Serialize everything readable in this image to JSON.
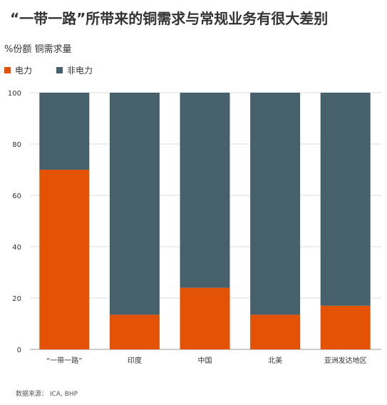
{
  "title": "“一带一路”所带来的铜需求与常规业务有很大差别",
  "source": "数据来源： ICA, BHP",
  "chart_data": {
    "type": "bar",
    "stacked": true,
    "ylabel": "%份额 铜需求量",
    "categories": [
      "“一带一路”",
      "印度",
      "中国",
      "北美",
      "亚洲发达地区"
    ],
    "series": [
      {
        "name": "电力",
        "color": "#e35205",
        "values": [
          70,
          13.5,
          24,
          13.5,
          17
        ]
      },
      {
        "name": "非电力",
        "color": "#46606c",
        "values": [
          30,
          86.5,
          76,
          86.5,
          83
        ]
      }
    ],
    "ylim": [
      0,
      100
    ],
    "yticks": [
      0,
      20,
      40,
      60,
      80,
      100
    ],
    "grid": true,
    "legend_position": "top-left"
  }
}
